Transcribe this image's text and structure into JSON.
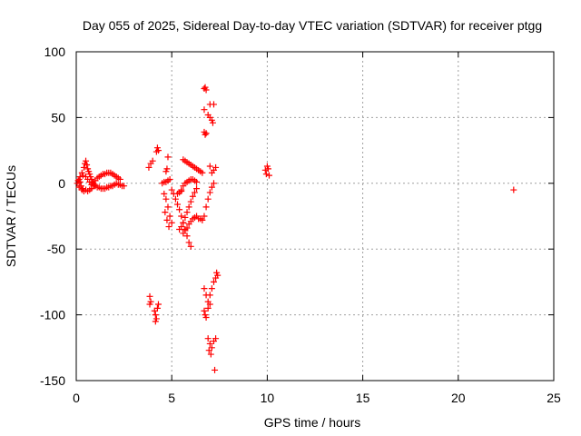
{
  "chart_data": {
    "type": "scatter",
    "title": "Day 055 of 2025, Sidereal Day-to-day VTEC variation (SDTVAR) for receiver ptgg",
    "xlabel": "GPS time / hours",
    "ylabel": "SDTVAR / TECUs",
    "xlim": [
      0,
      25
    ],
    "ylim": [
      -150,
      100
    ],
    "xticks": [
      "0",
      "5",
      "10",
      "15",
      "20",
      "25"
    ],
    "yticks": [
      "100",
      "50",
      "0",
      "-50",
      "-100",
      "-150"
    ],
    "grid": true,
    "marker": "plus",
    "color": "#ff0000",
    "series": [
      {
        "points": [
          [
            0.05,
            0
          ],
          [
            0.1,
            2
          ],
          [
            0.15,
            -3
          ],
          [
            0.2,
            5
          ],
          [
            0.25,
            -2
          ],
          [
            0.3,
            8
          ],
          [
            0.35,
            -4
          ],
          [
            0.4,
            12
          ],
          [
            0.45,
            15
          ],
          [
            0.5,
            17
          ],
          [
            0.55,
            14
          ],
          [
            0.6,
            11
          ],
          [
            0.65,
            9
          ],
          [
            0.7,
            7
          ],
          [
            0.75,
            5
          ],
          [
            0.8,
            3
          ],
          [
            0.85,
            1
          ],
          [
            0.9,
            0
          ],
          [
            0.95,
            -1
          ],
          [
            1.0,
            -2
          ],
          [
            1.1,
            -3
          ],
          [
            1.2,
            -3
          ],
          [
            1.3,
            -4
          ],
          [
            1.4,
            -4
          ],
          [
            1.5,
            -4
          ],
          [
            1.6,
            -3
          ],
          [
            1.7,
            -3
          ],
          [
            1.8,
            -2
          ],
          [
            1.9,
            -2
          ],
          [
            2.0,
            -1
          ],
          [
            2.1,
            0
          ],
          [
            2.2,
            -1
          ],
          [
            2.3,
            -1
          ],
          [
            2.4,
            -2
          ],
          [
            2.5,
            -2
          ],
          [
            0.5,
            5
          ],
          [
            0.6,
            3
          ],
          [
            0.7,
            1
          ],
          [
            0.8,
            -1
          ],
          [
            0.9,
            -2
          ],
          [
            1.0,
            2
          ],
          [
            1.1,
            4
          ],
          [
            1.2,
            5
          ],
          [
            1.3,
            6
          ],
          [
            1.4,
            7
          ],
          [
            1.5,
            7
          ],
          [
            1.6,
            8
          ],
          [
            1.7,
            8
          ],
          [
            1.8,
            8
          ],
          [
            1.9,
            7
          ],
          [
            2.0,
            6
          ],
          [
            2.1,
            5
          ],
          [
            2.2,
            4
          ],
          [
            2.3,
            3
          ],
          [
            0.3,
            -5
          ],
          [
            0.4,
            -6
          ],
          [
            0.5,
            -5
          ],
          [
            0.6,
            -6
          ],
          [
            0.7,
            -5
          ],
          [
            0.8,
            -4
          ],
          [
            0.2,
            1
          ],
          [
            0.15,
            3
          ],
          [
            0.35,
            6
          ],
          [
            3.8,
            12
          ],
          [
            3.9,
            15
          ],
          [
            4.0,
            17
          ],
          [
            4.2,
            24
          ],
          [
            4.25,
            27
          ],
          [
            4.3,
            25
          ],
          [
            4.6,
            -8
          ],
          [
            4.7,
            -12
          ],
          [
            4.8,
            -18
          ],
          [
            4.9,
            -25
          ],
          [
            5.0,
            -30
          ],
          [
            4.65,
            -22
          ],
          [
            4.75,
            -28
          ],
          [
            4.85,
            -33
          ],
          [
            4.5,
            0
          ],
          [
            4.6,
            1
          ],
          [
            4.7,
            1
          ],
          [
            4.8,
            2
          ],
          [
            4.9,
            3
          ],
          [
            4.7,
            9
          ],
          [
            4.75,
            11
          ],
          [
            4.8,
            20
          ],
          [
            5.0,
            -5
          ],
          [
            5.1,
            -8
          ],
          [
            5.2,
            -12
          ],
          [
            5.3,
            -16
          ],
          [
            5.4,
            -20
          ],
          [
            5.5,
            -25
          ],
          [
            5.6,
            -30
          ],
          [
            5.7,
            -35
          ],
          [
            5.8,
            -40
          ],
          [
            5.9,
            -45
          ],
          [
            6.0,
            -48
          ],
          [
            5.5,
            -5
          ],
          [
            5.6,
            -2
          ],
          [
            5.7,
            0
          ],
          [
            5.8,
            1
          ],
          [
            5.9,
            2
          ],
          [
            6.0,
            3
          ],
          [
            6.1,
            3
          ],
          [
            6.2,
            2
          ],
          [
            6.3,
            1
          ],
          [
            5.3,
            -8
          ],
          [
            5.4,
            -7
          ],
          [
            5.5,
            -6
          ],
          [
            5.6,
            18
          ],
          [
            5.7,
            17
          ],
          [
            5.8,
            16
          ],
          [
            5.9,
            15
          ],
          [
            6.0,
            14
          ],
          [
            6.1,
            13
          ],
          [
            6.2,
            12
          ],
          [
            6.3,
            11
          ],
          [
            6.4,
            10
          ],
          [
            6.5,
            9
          ],
          [
            6.6,
            8
          ],
          [
            5.6,
            -38
          ],
          [
            5.7,
            -36
          ],
          [
            5.8,
            -34
          ],
          [
            5.9,
            -31
          ],
          [
            6.0,
            -29
          ],
          [
            6.1,
            -27
          ],
          [
            6.2,
            -26
          ],
          [
            6.3,
            -25
          ],
          [
            6.4,
            -27
          ],
          [
            6.5,
            -27
          ],
          [
            5.4,
            -35
          ],
          [
            5.5,
            -33
          ],
          [
            5.6,
            -30
          ],
          [
            5.7,
            -26
          ],
          [
            5.8,
            -22
          ],
          [
            5.9,
            -18
          ],
          [
            6.0,
            -14
          ],
          [
            6.1,
            -10
          ],
          [
            6.2,
            -7
          ],
          [
            6.3,
            -4
          ],
          [
            6.6,
            -28
          ],
          [
            6.7,
            -25
          ],
          [
            6.8,
            -18
          ],
          [
            6.9,
            -12
          ],
          [
            7.0,
            -7
          ],
          [
            7.1,
            -3
          ],
          [
            7.2,
            0
          ],
          [
            6.7,
            72
          ],
          [
            6.75,
            73
          ],
          [
            6.8,
            71
          ],
          [
            6.7,
            56
          ],
          [
            6.9,
            52
          ],
          [
            7.0,
            50
          ],
          [
            7.1,
            48
          ],
          [
            7.15,
            46
          ],
          [
            7.0,
            60
          ],
          [
            7.2,
            60
          ],
          [
            6.7,
            39
          ],
          [
            6.75,
            37
          ],
          [
            6.8,
            38
          ],
          [
            7.0,
            13
          ],
          [
            7.1,
            8
          ],
          [
            7.2,
            10
          ],
          [
            7.3,
            12
          ],
          [
            3.85,
            -86
          ],
          [
            3.9,
            -90
          ],
          [
            3.85,
            -92
          ],
          [
            4.1,
            -97
          ],
          [
            4.15,
            -100
          ],
          [
            4.2,
            -103
          ],
          [
            4.25,
            -95
          ],
          [
            4.3,
            -92
          ],
          [
            4.15,
            -105
          ],
          [
            6.7,
            -80
          ],
          [
            6.8,
            -85
          ],
          [
            6.9,
            -90
          ],
          [
            7.0,
            -92
          ],
          [
            6.7,
            -97
          ],
          [
            6.75,
            -100
          ],
          [
            6.8,
            -102
          ],
          [
            6.9,
            -95
          ],
          [
            7.0,
            -85
          ],
          [
            7.1,
            -80
          ],
          [
            7.2,
            -75
          ],
          [
            7.3,
            -72
          ],
          [
            7.4,
            -70
          ],
          [
            7.35,
            -68
          ],
          [
            6.9,
            -118
          ],
          [
            7.0,
            -122
          ],
          [
            7.1,
            -125
          ],
          [
            7.2,
            -120
          ],
          [
            7.3,
            -118
          ],
          [
            6.95,
            -127
          ],
          [
            7.05,
            -130
          ],
          [
            7.25,
            -142
          ],
          [
            9.9,
            10
          ],
          [
            9.95,
            7
          ],
          [
            10.0,
            13
          ],
          [
            10.05,
            11
          ],
          [
            10.1,
            6
          ],
          [
            22.9,
            -5
          ]
        ]
      }
    ]
  }
}
